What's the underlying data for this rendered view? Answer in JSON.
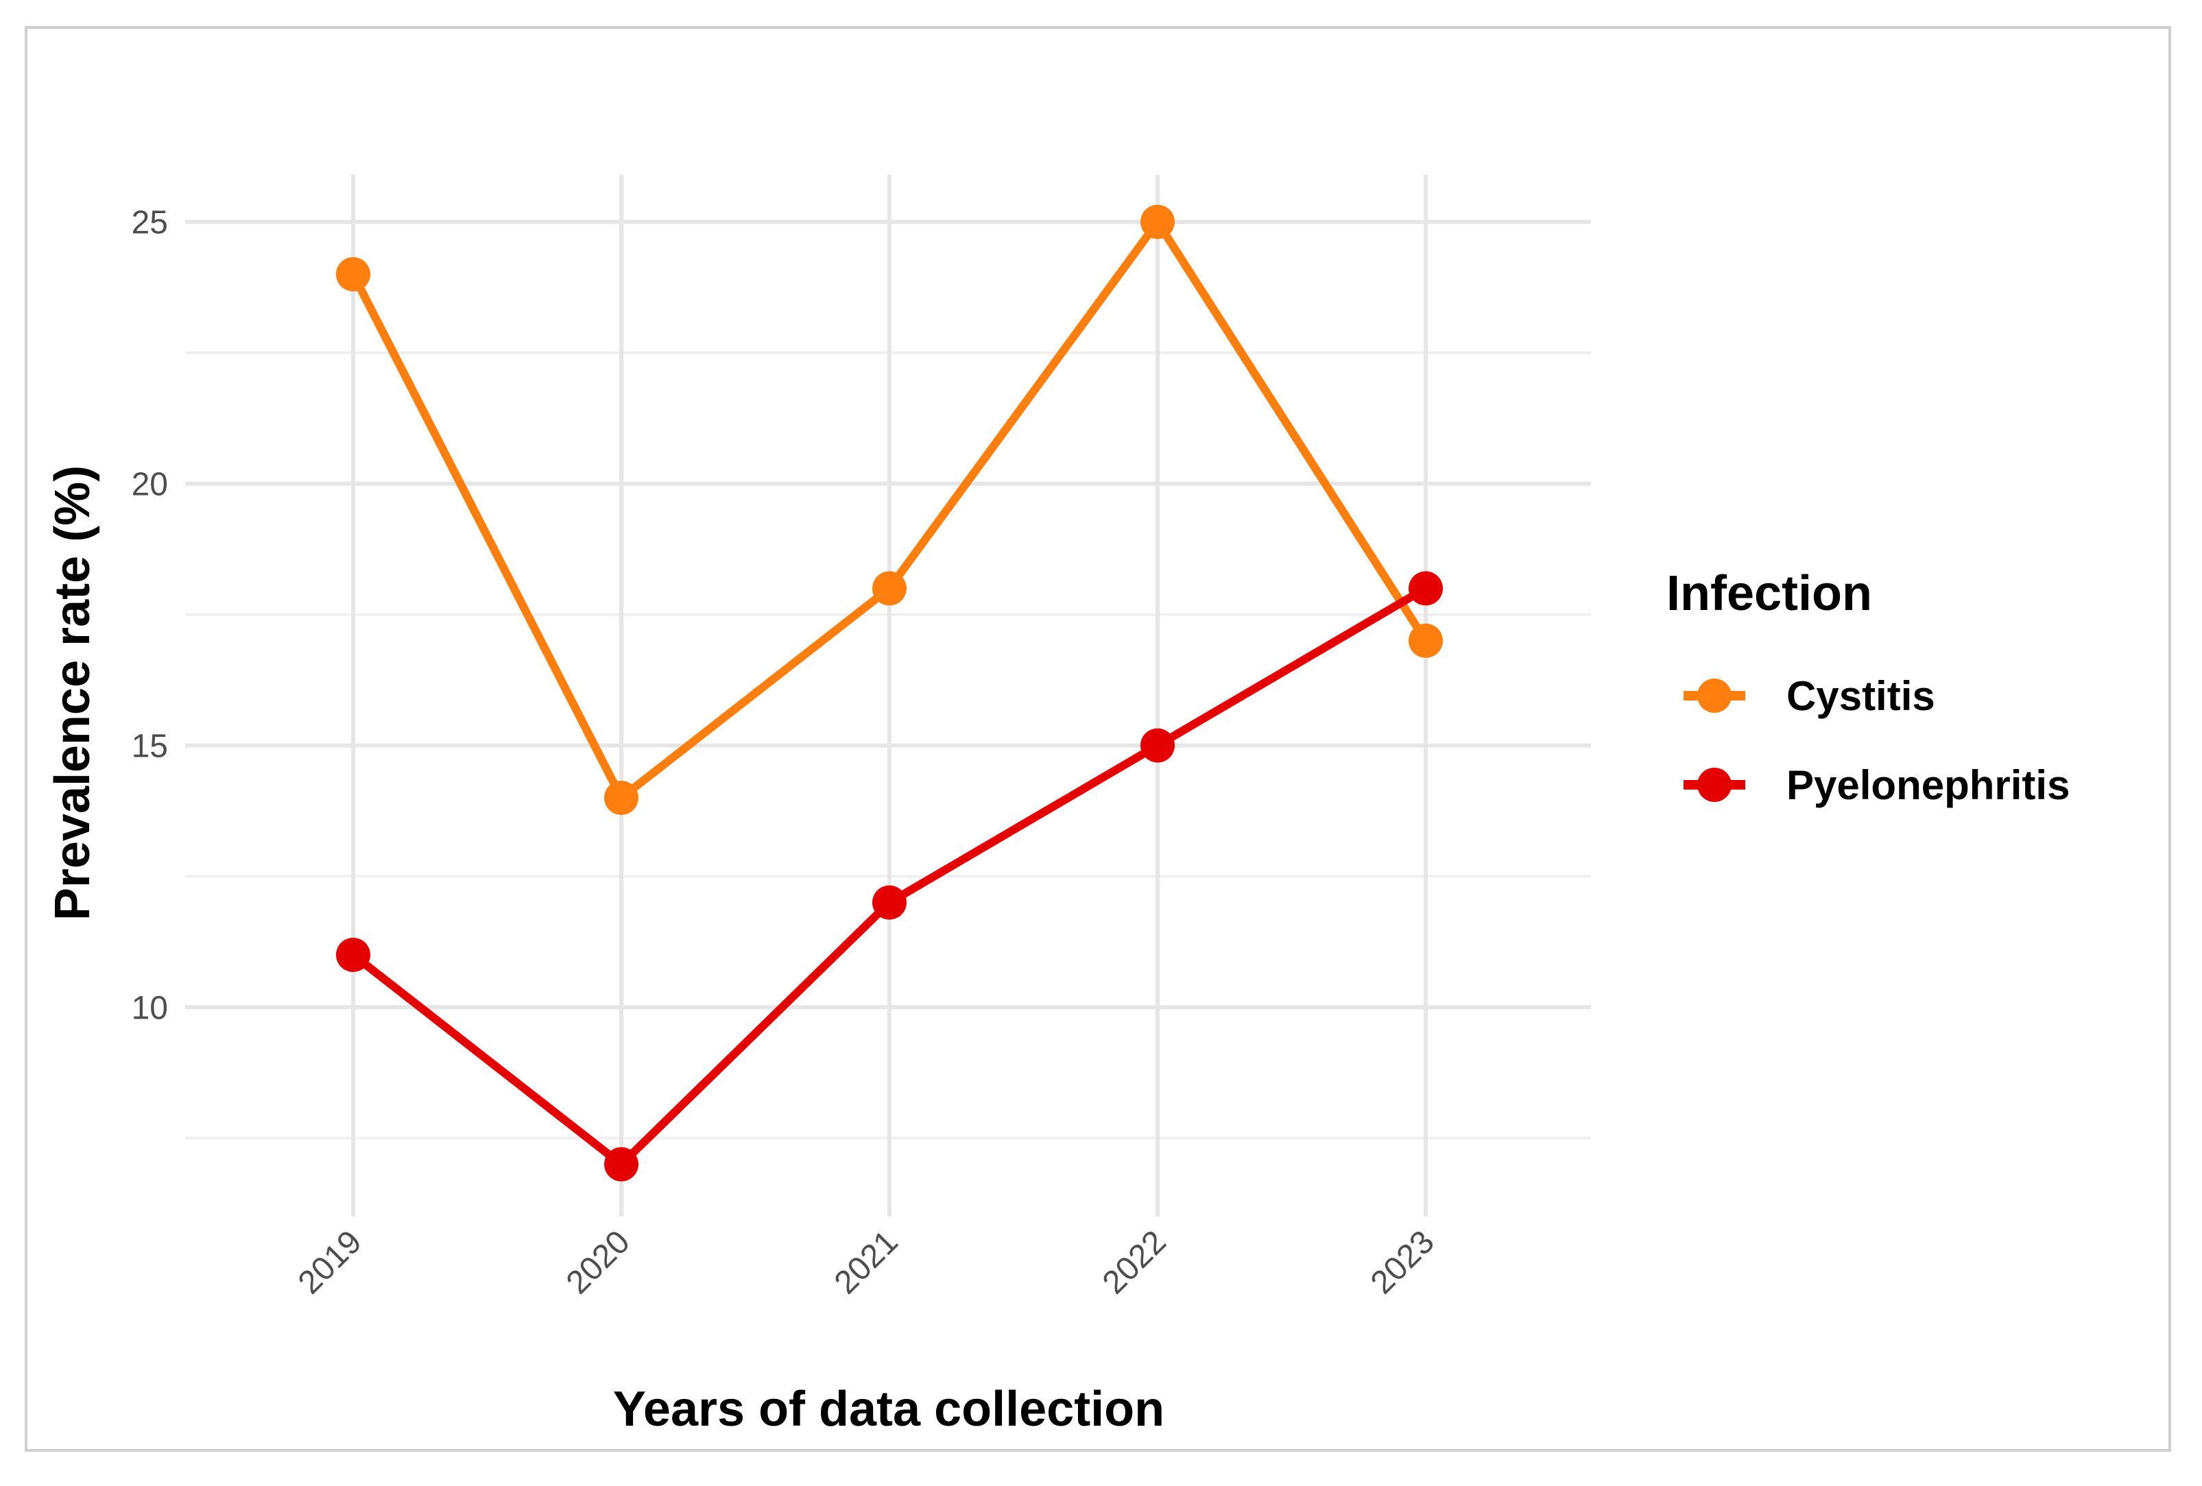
{
  "chart_data": {
    "type": "line",
    "xlabel": "Years of data collection",
    "ylabel": "Prevalence rate (%)",
    "categories": [
      "2019",
      "2020",
      "2021",
      "2022",
      "2023"
    ],
    "y_ticks": [
      10,
      15,
      20,
      25
    ],
    "ylim": [
      6.0,
      25.9
    ],
    "grid": true,
    "legend": {
      "title": "Infection",
      "placement": "right"
    },
    "series": [
      {
        "name": "Cystitis",
        "color": "#ff7f0e",
        "values": [
          24,
          14,
          18,
          25,
          17
        ]
      },
      {
        "name": "Pyelonephritis",
        "color": "#e50000",
        "values": [
          11,
          7,
          12,
          15,
          18
        ]
      }
    ]
  }
}
